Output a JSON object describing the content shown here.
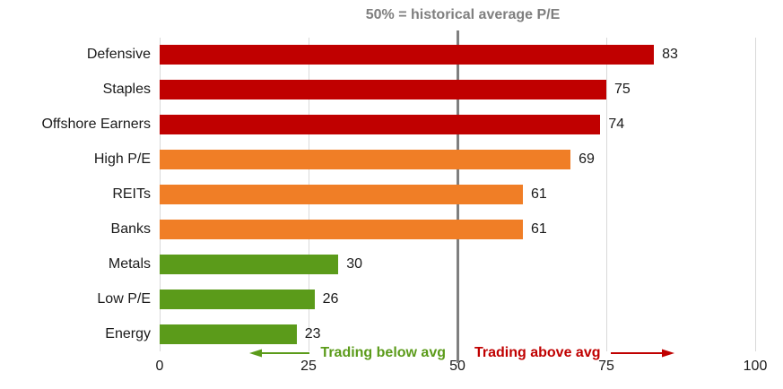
{
  "title": "50% = historical average P/E",
  "chart_data": {
    "type": "bar",
    "orientation": "horizontal",
    "title": "50% = historical average P/E",
    "categories": [
      "Defensive",
      "Staples",
      "Offshore Earners",
      "High P/E",
      "REITs",
      "Banks",
      "Metals",
      "Low P/E",
      "Energy"
    ],
    "values": [
      83,
      75,
      74,
      69,
      61,
      61,
      30,
      26,
      23
    ],
    "bar_colors": [
      "#C00000",
      "#C00000",
      "#C00000",
      "#F07E26",
      "#F07E26",
      "#F07E26",
      "#5B9B1A",
      "#5B9B1A",
      "#5B9B1A"
    ],
    "xlim": [
      0,
      100
    ],
    "x_ticks": [
      0,
      25,
      50,
      75,
      100
    ],
    "grid": "vertical-light-gray",
    "legend": "none",
    "reference_line": {
      "x": 50,
      "color": "#7F7F7F",
      "label": "50% = historical average P/E"
    },
    "annotations": [
      {
        "text": "Trading below avg",
        "color": "#5B9B1A",
        "arrow": "left"
      },
      {
        "text": "Trading above avg",
        "color": "#C00000",
        "arrow": "right"
      }
    ]
  },
  "colors": {
    "red": "#C00000",
    "orange": "#F07E26",
    "green": "#5B9B1A",
    "gridline": "#D9D9D9",
    "reference_line": "#7F7F7F",
    "title_text": "#7F7F7F",
    "text": "#1A1A1A",
    "background": "#FFFFFF"
  }
}
